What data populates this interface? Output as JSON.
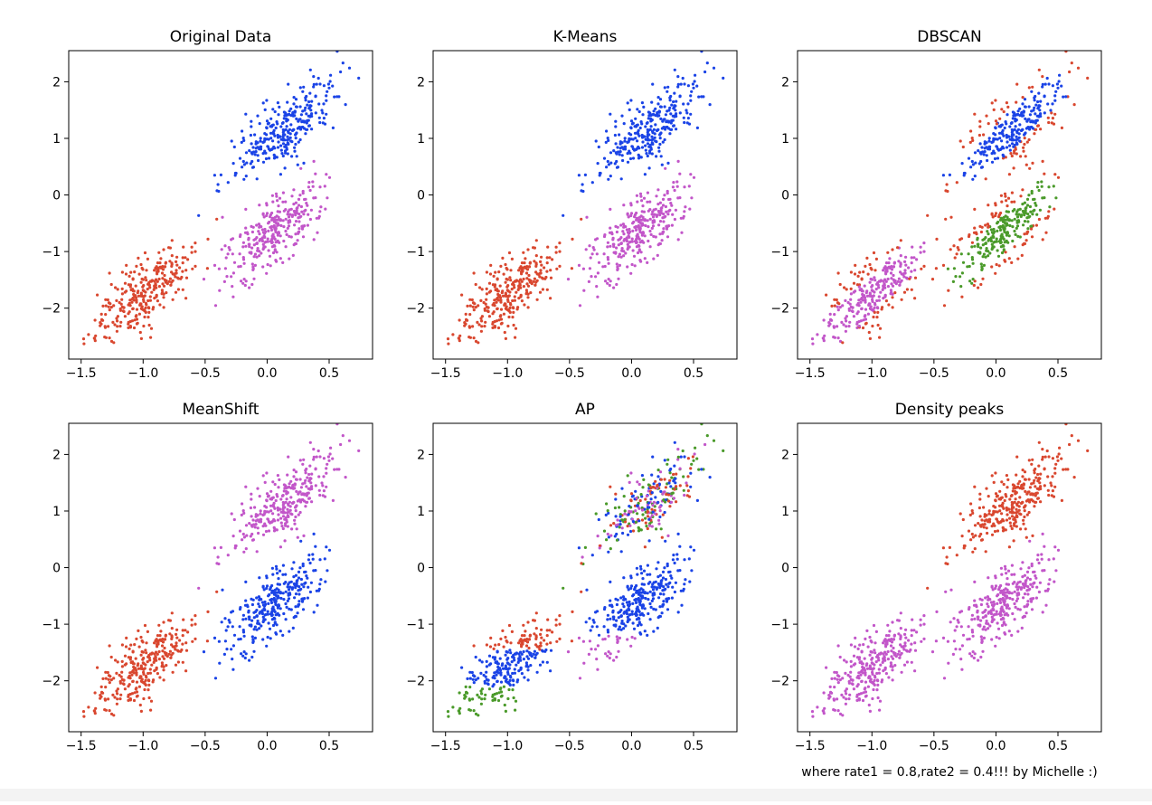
{
  "figure": {
    "caption": "where rate1 = 0.8,rate2 = 0.4!!! by Michelle :)",
    "colors": {
      "red": "#d9472f",
      "blue": "#1a43e6",
      "magenta": "#c256c9",
      "green": "#4a9a2a"
    }
  },
  "chart_data": [
    {
      "type": "scatter",
      "title": "Original Data",
      "xlim": [
        -1.6,
        0.85
      ],
      "ylim": [
        -2.9,
        2.55
      ],
      "xticks": [
        -1.5,
        -1.0,
        -0.5,
        0.0,
        0.5
      ],
      "xtick_labels": [
        "−1.5",
        "−1.0",
        "−0.5",
        "0.0",
        "0.5"
      ],
      "yticks": [
        -2,
        -1,
        0,
        1,
        2
      ],
      "ytick_labels": [
        "−2",
        "−1",
        "0",
        "1",
        "2"
      ],
      "xlabel": "",
      "ylabel": "",
      "clusters": [
        {
          "name": "cluster-lower-left",
          "center": [
            -1.0,
            -1.75
          ],
          "color": "red"
        },
        {
          "name": "cluster-middle",
          "center": [
            0.05,
            -0.7
          ],
          "color": "magenta"
        },
        {
          "name": "cluster-upper",
          "center": [
            0.15,
            1.2
          ],
          "color": "blue"
        }
      ]
    },
    {
      "type": "scatter",
      "title": "K-Means",
      "xlim": [
        -1.6,
        0.85
      ],
      "ylim": [
        -2.9,
        2.55
      ],
      "xticks": [
        -1.5,
        -1.0,
        -0.5,
        0.0,
        0.5
      ],
      "xtick_labels": [
        "−1.5",
        "−1.0",
        "−0.5",
        "0.0",
        "0.5"
      ],
      "yticks": [
        -2,
        -1,
        0,
        1,
        2
      ],
      "ytick_labels": [
        "−2",
        "−1",
        "0",
        "1",
        "2"
      ],
      "xlabel": "",
      "ylabel": "",
      "clusters": [
        {
          "name": "cluster-lower-left",
          "center": [
            -1.0,
            -1.75
          ],
          "color": "red"
        },
        {
          "name": "cluster-middle",
          "center": [
            0.05,
            -0.7
          ],
          "color": "magenta"
        },
        {
          "name": "cluster-upper",
          "center": [
            0.15,
            1.2
          ],
          "color": "blue"
        }
      ]
    },
    {
      "type": "scatter",
      "title": "DBSCAN",
      "xlim": [
        -1.6,
        0.85
      ],
      "ylim": [
        -2.9,
        2.55
      ],
      "xticks": [
        -1.5,
        -1.0,
        -0.5,
        0.0,
        0.5
      ],
      "xtick_labels": [
        "−1.5",
        "−1.0",
        "−0.5",
        "0.0",
        "0.5"
      ],
      "yticks": [
        -2,
        -1,
        0,
        1,
        2
      ],
      "ytick_labels": [
        "−2",
        "−1",
        "0",
        "1",
        "2"
      ],
      "xlabel": "",
      "ylabel": "",
      "clusters": [
        {
          "name": "cluster-lower-left",
          "center": [
            -1.0,
            -1.75
          ],
          "color": "magenta"
        },
        {
          "name": "cluster-middle",
          "center": [
            0.05,
            -0.7
          ],
          "color": "green"
        },
        {
          "name": "cluster-upper",
          "center": [
            0.15,
            1.2
          ],
          "color": "blue"
        },
        {
          "name": "noise",
          "center": [
            0.0,
            0.0
          ],
          "color": "red"
        }
      ]
    },
    {
      "type": "scatter",
      "title": "MeanShift",
      "xlim": [
        -1.6,
        0.85
      ],
      "ylim": [
        -2.9,
        2.55
      ],
      "xticks": [
        -1.5,
        -1.0,
        -0.5,
        0.0,
        0.5
      ],
      "xtick_labels": [
        "−1.5",
        "−1.0",
        "−0.5",
        "0.0",
        "0.5"
      ],
      "yticks": [
        -2,
        -1,
        0,
        1,
        2
      ],
      "ytick_labels": [
        "−2",
        "−1",
        "0",
        "1",
        "2"
      ],
      "xlabel": "",
      "ylabel": "",
      "clusters": [
        {
          "name": "cluster-lower-left",
          "center": [
            -1.0,
            -1.75
          ],
          "color": "red"
        },
        {
          "name": "cluster-middle",
          "center": [
            0.05,
            -0.7
          ],
          "color": "blue"
        },
        {
          "name": "cluster-upper",
          "center": [
            0.15,
            1.2
          ],
          "color": "magenta"
        }
      ]
    },
    {
      "type": "scatter",
      "title": "AP",
      "xlim": [
        -1.6,
        0.85
      ],
      "ylim": [
        -2.9,
        2.55
      ],
      "xticks": [
        -1.5,
        -1.0,
        -0.5,
        0.0,
        0.5
      ],
      "xtick_labels": [
        "−1.5",
        "−1.0",
        "−0.5",
        "0.0",
        "0.5"
      ],
      "yticks": [
        -2,
        -1,
        0,
        1,
        2
      ],
      "ytick_labels": [
        "−2",
        "−1",
        "0",
        "1",
        "2"
      ],
      "xlabel": "",
      "ylabel": "",
      "clusters": [
        {
          "name": "cluster-lower-left",
          "center": [
            -1.0,
            -1.75
          ],
          "color": "mixed: red, blue, green"
        },
        {
          "name": "cluster-middle",
          "center": [
            0.05,
            -0.7
          ],
          "color": "mixed: blue, magenta"
        },
        {
          "name": "cluster-upper",
          "center": [
            0.15,
            1.2
          ],
          "color": "mixed: blue, red, green, magenta"
        }
      ]
    },
    {
      "type": "scatter",
      "title": "Density peaks",
      "xlim": [
        -1.6,
        0.85
      ],
      "ylim": [
        -2.9,
        2.55
      ],
      "xticks": [
        -1.5,
        -1.0,
        -0.5,
        0.0,
        0.5
      ],
      "xtick_labels": [
        "−1.5",
        "−1.0",
        "−0.5",
        "0.0",
        "0.5"
      ],
      "yticks": [
        -2,
        -1,
        0,
        1,
        2
      ],
      "ytick_labels": [
        "−2",
        "−1",
        "0",
        "1",
        "2"
      ],
      "xlabel": "",
      "ylabel": "",
      "clusters": [
        {
          "name": "cluster-lower-left",
          "center": [
            -1.0,
            -1.75
          ],
          "color": "magenta"
        },
        {
          "name": "cluster-middle",
          "center": [
            0.05,
            -0.7
          ],
          "color": "magenta"
        },
        {
          "name": "cluster-upper",
          "center": [
            0.15,
            1.2
          ],
          "color": "red"
        }
      ]
    }
  ]
}
